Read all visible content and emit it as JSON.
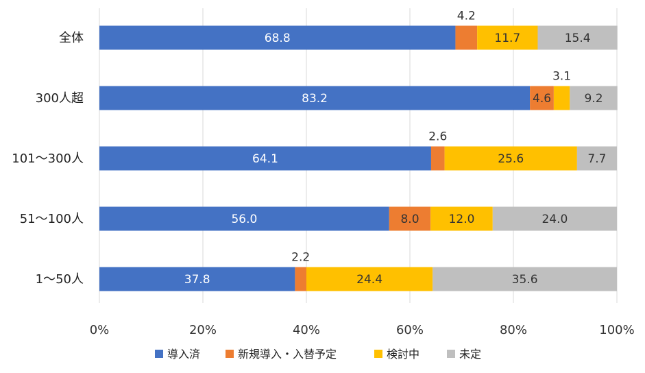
{
  "chart_data": {
    "type": "bar",
    "orientation": "horizontal",
    "stacked": "percent",
    "categories": [
      "全体",
      "300人超",
      "101〜300人",
      "51〜100人",
      "1〜50人"
    ],
    "series": [
      {
        "name": "導入済",
        "color": "#4472C4",
        "values": [
          68.8,
          83.2,
          64.1,
          56.0,
          37.8
        ],
        "labels": [
          "68.8",
          "83.2",
          "64.1",
          "56.0",
          "37.8"
        ]
      },
      {
        "name": "新規導入・入替予定",
        "color": "#ED7D31",
        "values": [
          4.2,
          4.6,
          2.6,
          8.0,
          2.2
        ],
        "labels": [
          "4.2",
          "4.6",
          "2.6",
          "8.0",
          "2.2"
        ]
      },
      {
        "name": "検討中",
        "color": "#FFC000",
        "values": [
          11.7,
          3.1,
          25.6,
          12.0,
          24.4
        ],
        "labels": [
          "11.7",
          "3.1",
          "25.6",
          "12.0",
          "24.4"
        ]
      },
      {
        "name": "未定",
        "color": "#BFBFBF",
        "values": [
          15.4,
          9.2,
          7.7,
          24.0,
          35.6
        ],
        "labels": [
          "15.4",
          "9.2",
          "7.7",
          "24.0",
          "35.6"
        ]
      }
    ],
    "xlim": [
      0,
      100
    ],
    "x_ticks": [
      "0%",
      "20%",
      "40%",
      "60%",
      "80%",
      "100%"
    ],
    "grid": "vertical",
    "legend": "bottom"
  }
}
